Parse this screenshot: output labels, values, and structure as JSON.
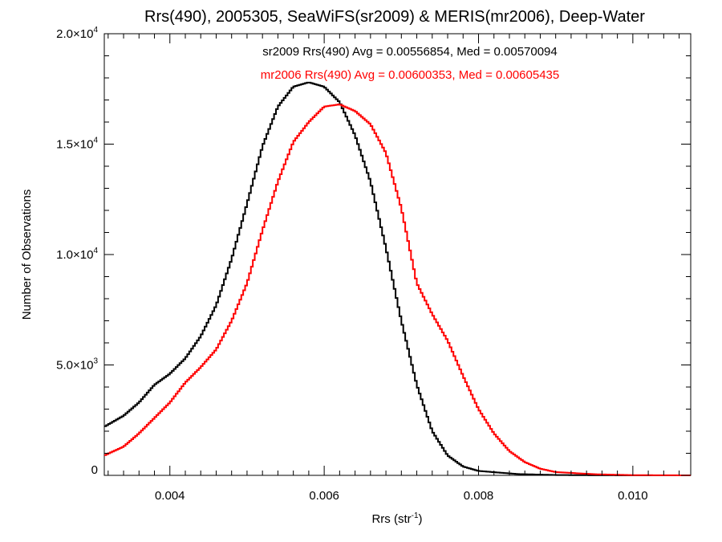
{
  "chart_data": {
    "type": "line",
    "title": "Rrs(490), 2005305, SeaWiFS(sr2009) & MERIS(mr2006), Deep-Water",
    "xlabel": "Rrs (str",
    "xlabel_sup": "-1",
    "xlabel_close": ")",
    "ylabel": "Number of Observations",
    "xlim": [
      0.00315,
      0.01075
    ],
    "ylim": [
      0,
      20000
    ],
    "grid": false,
    "step": true,
    "x_ticks": [
      {
        "value": 0.004,
        "label": "0.004"
      },
      {
        "value": 0.006,
        "label": "0.006"
      },
      {
        "value": 0.008,
        "label": "0.008"
      },
      {
        "value": 0.01,
        "label": "0.010"
      }
    ],
    "y_ticks": [
      {
        "value": 0,
        "mant": "0",
        "exp": ""
      },
      {
        "value": 5000,
        "mant": "5.0×10",
        "exp": "3"
      },
      {
        "value": 10000,
        "mant": "1.0×10",
        "exp": "4"
      },
      {
        "value": 15000,
        "mant": "1.5×10",
        "exp": "4"
      },
      {
        "value": 20000,
        "mant": "2.0×10",
        "exp": "4"
      }
    ],
    "series": [
      {
        "name": "sr2009",
        "color": "#000000",
        "annotation": "sr2009 Rrs(490) Avg = 0.00556854, Med = 0.00570094",
        "points": [
          [
            0.00315,
            2200
          ],
          [
            0.0034,
            2700
          ],
          [
            0.0036,
            3300
          ],
          [
            0.0038,
            4100
          ],
          [
            0.004,
            4600
          ],
          [
            0.0042,
            5300
          ],
          [
            0.0044,
            6300
          ],
          [
            0.0046,
            7700
          ],
          [
            0.0048,
            9800
          ],
          [
            0.005,
            12300
          ],
          [
            0.0052,
            14900
          ],
          [
            0.0054,
            16700
          ],
          [
            0.0056,
            17600
          ],
          [
            0.0058,
            17800
          ],
          [
            0.006,
            17600
          ],
          [
            0.0062,
            16900
          ],
          [
            0.0064,
            15400
          ],
          [
            0.0066,
            13300
          ],
          [
            0.0068,
            10300
          ],
          [
            0.007,
            7000
          ],
          [
            0.0072,
            4100
          ],
          [
            0.0074,
            2000
          ],
          [
            0.0076,
            900
          ],
          [
            0.0078,
            400
          ],
          [
            0.008,
            200
          ],
          [
            0.0085,
            60
          ],
          [
            0.009,
            15
          ],
          [
            0.0095,
            5
          ],
          [
            0.01,
            0
          ],
          [
            0.01075,
            0
          ]
        ]
      },
      {
        "name": "mr2006",
        "color": "#ff0000",
        "annotation": "mr2006 Rrs(490) Avg = 0.00600353, Med = 0.00605435",
        "points": [
          [
            0.00315,
            900
          ],
          [
            0.0034,
            1300
          ],
          [
            0.0036,
            1900
          ],
          [
            0.0038,
            2600
          ],
          [
            0.004,
            3300
          ],
          [
            0.0042,
            4200
          ],
          [
            0.0044,
            4900
          ],
          [
            0.0046,
            5700
          ],
          [
            0.0048,
            7000
          ],
          [
            0.005,
            8700
          ],
          [
            0.0052,
            11100
          ],
          [
            0.0054,
            13300
          ],
          [
            0.0056,
            15100
          ],
          [
            0.0058,
            16000
          ],
          [
            0.006,
            16700
          ],
          [
            0.0062,
            16800
          ],
          [
            0.0064,
            16500
          ],
          [
            0.0066,
            15900
          ],
          [
            0.0068,
            14600
          ],
          [
            0.007,
            12100
          ],
          [
            0.0072,
            8700
          ],
          [
            0.0074,
            7300
          ],
          [
            0.0076,
            6100
          ],
          [
            0.0078,
            4500
          ],
          [
            0.008,
            3000
          ],
          [
            0.0082,
            1900
          ],
          [
            0.0084,
            1100
          ],
          [
            0.0086,
            600
          ],
          [
            0.0088,
            300
          ],
          [
            0.009,
            150
          ],
          [
            0.0095,
            50
          ],
          [
            0.01,
            10
          ],
          [
            0.01075,
            0
          ]
        ]
      }
    ]
  }
}
